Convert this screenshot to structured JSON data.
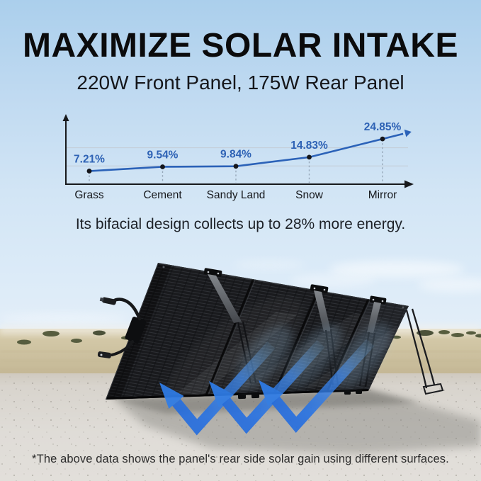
{
  "header": {
    "title": "MAXIMIZE SOLAR INTAKE",
    "subtitle": "220W Front Panel, 175W Rear Panel"
  },
  "chart_data": {
    "type": "line",
    "title": "",
    "xlabel": "",
    "ylabel": "",
    "categories": [
      "Grass",
      "Cement",
      "Sandy Land",
      "Snow",
      "Mirror"
    ],
    "values": [
      7.21,
      9.54,
      9.84,
      14.83,
      24.85
    ],
    "value_labels": [
      "7.21%",
      "9.54%",
      "9.84%",
      "14.83%",
      "24.85%"
    ],
    "unit": "%",
    "ylim": [
      0,
      28
    ],
    "gridline_values": [
      10,
      20
    ],
    "grid": "horizontal",
    "legend": "none",
    "trend_arrow": true,
    "line_color": "#2b62b8",
    "point_color": "#15161a",
    "label_color": "#2e62b5",
    "axis_color": "#17191c",
    "gridline_color": "#c3ccd5",
    "dashed_tick_color": "#97a8ba",
    "category_color": "#17191d"
  },
  "caption": {
    "text": "Its bifacial design collects up to 28% more energy."
  },
  "footnote": {
    "text": "*The above data shows the panel's rear side solar gain using different surfaces."
  },
  "theme": {
    "sky_top": "#abcfec",
    "sky_mid": "#d2e5f5",
    "sky_low": "#e3eef8",
    "land_tan": "#cdc0a0",
    "sand": "#dedbd6",
    "panel_dark": "#1a1b1e",
    "title_color": "#0b0b0c",
    "text_color": "#1d2127",
    "footnote_color": "#2c2c2c",
    "accent_blue": "#2f7de6",
    "label_blue": "#2e62b5"
  }
}
